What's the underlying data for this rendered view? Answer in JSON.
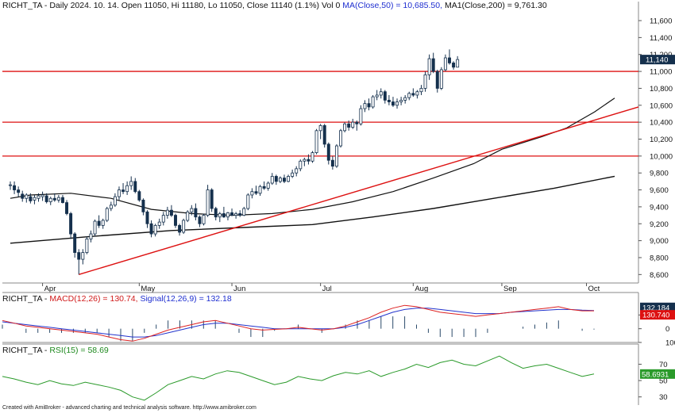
{
  "header": {
    "ticker": "RICHT_TA",
    "info": "- Daily 2024. 10. 14. Open 11050, Hi 11180, Lo 11050, Close 11140 (1.1%) Vol 0",
    "ma50_label": "MA(Close,50) = 10,685.50,",
    "ma200_label": "MA1(Close,200) = 9,761.30"
  },
  "macd_header": {
    "ticker": "RICHT_TA",
    "macd_label": "MACD(12,26) = 130.74,",
    "signal_label": "Signal(12,26,9) = 132.18"
  },
  "rsi_header": {
    "ticker": "RICHT_TA",
    "rsi_label": "RSI(15) = 58.69"
  },
  "footer": "Created with AmiBroker - advanced charting and technical analysis software. http://www.amibroker.com",
  "colors": {
    "up": "#ffffff",
    "down": "#15304d",
    "candle": "#15304d",
    "ma": "#111111",
    "hline": "#dd1111",
    "trend": "#dd1111",
    "macd": "#dd2222",
    "signal": "#2233cc",
    "hist": "#2a4a6a",
    "rsi": "#2a9a2a",
    "price_tag": "#15304d",
    "macd_tag": "#15304d",
    "signal_tag": "#dd1111",
    "rsi_tag": "#2a9a2a"
  },
  "chart_data": [
    {
      "type": "candlestick",
      "title": "RICHT_TA - Daily",
      "x_labels": [
        "Apr",
        "May",
        "Jun",
        "Jul",
        "Aug",
        "Sep",
        "Oct"
      ],
      "x_label_index": [
        8,
        32,
        55,
        77,
        100,
        122,
        143
      ],
      "ylim": [
        8500,
        11750
      ],
      "y_ticks": [
        8600,
        8800,
        9000,
        9200,
        9400,
        9600,
        9800,
        10000,
        10200,
        10400,
        10600,
        10800,
        11000,
        11200,
        11400,
        11600
      ],
      "horizontal_lines": [
        11000,
        10400,
        10000
      ],
      "trendline": {
        "from": [
          17,
          8600
        ],
        "to": [
          162,
          10580
        ]
      },
      "last_price_tag": "11,140",
      "ma50_points": [
        [
          0,
          9500
        ],
        [
          5,
          9540
        ],
        [
          15,
          9560
        ],
        [
          25,
          9500
        ],
        [
          35,
          9370
        ],
        [
          45,
          9320
        ],
        [
          55,
          9300
        ],
        [
          65,
          9320
        ],
        [
          75,
          9370
        ],
        [
          85,
          9460
        ],
        [
          95,
          9580
        ],
        [
          105,
          9740
        ],
        [
          115,
          9910
        ],
        [
          122,
          10080
        ],
        [
          132,
          10230
        ],
        [
          138,
          10330
        ],
        [
          145,
          10520
        ],
        [
          150,
          10685
        ]
      ],
      "ma200_points": [
        [
          0,
          8970
        ],
        [
          20,
          9050
        ],
        [
          40,
          9120
        ],
        [
          60,
          9160
        ],
        [
          75,
          9190
        ],
        [
          90,
          9280
        ],
        [
          105,
          9380
        ],
        [
          120,
          9500
        ],
        [
          135,
          9620
        ],
        [
          150,
          9761
        ]
      ],
      "candles": [
        [
          9660,
          9700,
          9600,
          9660
        ],
        [
          9650,
          9700,
          9550,
          9600
        ],
        [
          9600,
          9640,
          9520,
          9570
        ],
        [
          9550,
          9590,
          9460,
          9500
        ],
        [
          9500,
          9560,
          9450,
          9540
        ],
        [
          9520,
          9560,
          9440,
          9470
        ],
        [
          9480,
          9540,
          9430,
          9510
        ],
        [
          9500,
          9560,
          9460,
          9530
        ],
        [
          9520,
          9580,
          9470,
          9540
        ],
        [
          9530,
          9560,
          9440,
          9460
        ],
        [
          9460,
          9520,
          9420,
          9500
        ],
        [
          9500,
          9560,
          9460,
          9480
        ],
        [
          9480,
          9540,
          9450,
          9510
        ],
        [
          9510,
          9540,
          9440,
          9450
        ],
        [
          9450,
          9480,
          9300,
          9320
        ],
        [
          9320,
          9340,
          9020,
          9080
        ],
        [
          9080,
          9100,
          8800,
          8860
        ],
        [
          8860,
          8900,
          8600,
          8780
        ],
        [
          8780,
          8900,
          8720,
          8860
        ],
        [
          8860,
          9050,
          8840,
          9020
        ],
        [
          9020,
          9120,
          8980,
          9080
        ],
        [
          9080,
          9250,
          9050,
          9230
        ],
        [
          9230,
          9300,
          9150,
          9180
        ],
        [
          9180,
          9260,
          9140,
          9240
        ],
        [
          9240,
          9400,
          9220,
          9380
        ],
        [
          9380,
          9460,
          9350,
          9420
        ],
        [
          9420,
          9560,
          9400,
          9520
        ],
        [
          9520,
          9640,
          9480,
          9600
        ],
        [
          9600,
          9680,
          9550,
          9580
        ],
        [
          9580,
          9700,
          9540,
          9650
        ],
        [
          9650,
          9760,
          9600,
          9700
        ],
        [
          9700,
          9740,
          9560,
          9580
        ],
        [
          9580,
          9600,
          9460,
          9480
        ],
        [
          9480,
          9500,
          9300,
          9340
        ],
        [
          9340,
          9360,
          9150,
          9200
        ],
        [
          9200,
          9240,
          9040,
          9080
        ],
        [
          9080,
          9200,
          9050,
          9180
        ],
        [
          9180,
          9260,
          9140,
          9220
        ],
        [
          9220,
          9340,
          9180,
          9300
        ],
        [
          9300,
          9400,
          9260,
          9360
        ],
        [
          9360,
          9420,
          9280,
          9300
        ],
        [
          9300,
          9320,
          9150,
          9180
        ],
        [
          9180,
          9200,
          9060,
          9100
        ],
        [
          9100,
          9260,
          9080,
          9240
        ],
        [
          9240,
          9360,
          9220,
          9340
        ],
        [
          9340,
          9420,
          9300,
          9380
        ],
        [
          9380,
          9440,
          9240,
          9280
        ],
        [
          9280,
          9300,
          9160,
          9200
        ],
        [
          9200,
          9320,
          9180,
          9300
        ],
        [
          9300,
          9660,
          9280,
          9600
        ],
        [
          9600,
          9620,
          9340,
          9380
        ],
        [
          9380,
          9400,
          9240,
          9280
        ],
        [
          9280,
          9340,
          9220,
          9320
        ],
        [
          9320,
          9400,
          9270,
          9280
        ],
        [
          9280,
          9340,
          9240,
          9330
        ],
        [
          9330,
          9380,
          9290,
          9300
        ],
        [
          9300,
          9340,
          9260,
          9320
        ],
        [
          9320,
          9360,
          9280,
          9300
        ],
        [
          9300,
          9400,
          9290,
          9380
        ],
        [
          9380,
          9560,
          9360,
          9540
        ],
        [
          9540,
          9620,
          9500,
          9580
        ],
        [
          9580,
          9650,
          9540,
          9560
        ],
        [
          9560,
          9660,
          9530,
          9640
        ],
        [
          9640,
          9700,
          9600,
          9620
        ],
        [
          9620,
          9700,
          9590,
          9680
        ],
        [
          9680,
          9800,
          9660,
          9760
        ],
        [
          9760,
          9780,
          9660,
          9700
        ],
        [
          9700,
          9760,
          9680,
          9740
        ],
        [
          9740,
          9780,
          9680,
          9700
        ],
        [
          9700,
          9780,
          9690,
          9760
        ],
        [
          9760,
          9840,
          9740,
          9800
        ],
        [
          9800,
          9880,
          9760,
          9850
        ],
        [
          9850,
          9960,
          9820,
          9940
        ],
        [
          9940,
          9980,
          9880,
          9960
        ],
        [
          9960,
          10020,
          9900,
          9940
        ],
        [
          9940,
          10060,
          9920,
          10040
        ],
        [
          10040,
          10320,
          10020,
          10300
        ],
        [
          10300,
          10380,
          10200,
          10360
        ],
        [
          10360,
          10380,
          10100,
          10140
        ],
        [
          10140,
          10160,
          9900,
          9950
        ],
        [
          9950,
          10000,
          9840,
          9880
        ],
        [
          9880,
          10140,
          9860,
          10120
        ],
        [
          10120,
          10320,
          10100,
          10300
        ],
        [
          10300,
          10400,
          10280,
          10380
        ],
        [
          10380,
          10420,
          10300,
          10340
        ],
        [
          10340,
          10440,
          10320,
          10400
        ],
        [
          10400,
          10420,
          10300,
          10380
        ],
        [
          10380,
          10600,
          10360,
          10560
        ],
        [
          10560,
          10660,
          10520,
          10620
        ],
        [
          10620,
          10680,
          10540,
          10580
        ],
        [
          10580,
          10720,
          10560,
          10700
        ],
        [
          10700,
          10780,
          10660,
          10720
        ],
        [
          10720,
          10800,
          10680,
          10760
        ],
        [
          10760,
          10780,
          10620,
          10660
        ],
        [
          10660,
          10720,
          10600,
          10640
        ],
        [
          10640,
          10700,
          10580,
          10600
        ],
        [
          10600,
          10680,
          10560,
          10640
        ],
        [
          10640,
          10700,
          10600,
          10660
        ],
        [
          10660,
          10720,
          10620,
          10690
        ],
        [
          10690,
          10760,
          10660,
          10740
        ],
        [
          10740,
          10800,
          10700,
          10720
        ],
        [
          10720,
          10780,
          10680,
          10760
        ],
        [
          10760,
          10840,
          10720,
          10800
        ],
        [
          10800,
          11000,
          10760,
          10960
        ],
        [
          10960,
          11200,
          10900,
          11150
        ],
        [
          11150,
          11220,
          10980,
          11000
        ],
        [
          11000,
          11020,
          10750,
          10800
        ],
        [
          10800,
          11050,
          10780,
          11020
        ],
        [
          11020,
          11200,
          11000,
          11160
        ],
        [
          11160,
          11260,
          11080,
          11100
        ],
        [
          11100,
          11120,
          11020,
          11050
        ],
        [
          11050,
          11180,
          11050,
          11140
        ]
      ],
      "candle_x_index_start": 0
    },
    {
      "type": "line",
      "title": "MACD(12,26)",
      "ylim": [
        -100,
        200
      ],
      "y_ticks": [
        -100,
        0,
        100
      ],
      "y_tick_labels": [
        "100",
        "0",
        "100"
      ],
      "value_tags": [
        "132.184",
        "130.740"
      ],
      "series": [
        {
          "name": "MACD",
          "values": [
            60,
            40,
            20,
            10,
            0,
            -10,
            -20,
            -30,
            -40,
            -60,
            -80,
            -90,
            -70,
            -40,
            -10,
            10,
            30,
            50,
            60,
            40,
            20,
            0,
            -10,
            -5,
            0,
            10,
            0,
            -10,
            0,
            20,
            50,
            80,
            120,
            150,
            170,
            160,
            140,
            120,
            110,
            100,
            90,
            100,
            110,
            120,
            130,
            140,
            150,
            160,
            140,
            130,
            130
          ]
        },
        {
          "name": "Signal",
          "values": [
            50,
            40,
            30,
            20,
            10,
            0,
            -10,
            -20,
            -30,
            -40,
            -50,
            -60,
            -60,
            -50,
            -30,
            -10,
            10,
            30,
            40,
            40,
            30,
            20,
            10,
            0,
            0,
            0,
            0,
            0,
            0,
            10,
            30,
            60,
            90,
            120,
            140,
            150,
            150,
            140,
            130,
            120,
            110,
            110,
            110,
            120,
            125,
            130,
            135,
            140,
            140,
            135,
            132
          ]
        }
      ]
    },
    {
      "type": "line",
      "title": "RSI(15)",
      "ylim": [
        20,
        85
      ],
      "y_ticks": [
        30,
        50,
        70
      ],
      "value_tags": [
        "58.6931"
      ],
      "series": [
        {
          "name": "RSI",
          "values": [
            55,
            52,
            48,
            45,
            50,
            46,
            44,
            48,
            45,
            42,
            38,
            30,
            26,
            35,
            45,
            50,
            55,
            52,
            58,
            62,
            60,
            55,
            50,
            45,
            48,
            55,
            52,
            50,
            56,
            60,
            58,
            62,
            55,
            60,
            64,
            70,
            66,
            72,
            75,
            70,
            68,
            74,
            80,
            72,
            65,
            68,
            70,
            65,
            60,
            55,
            58
          ]
        }
      ]
    }
  ]
}
